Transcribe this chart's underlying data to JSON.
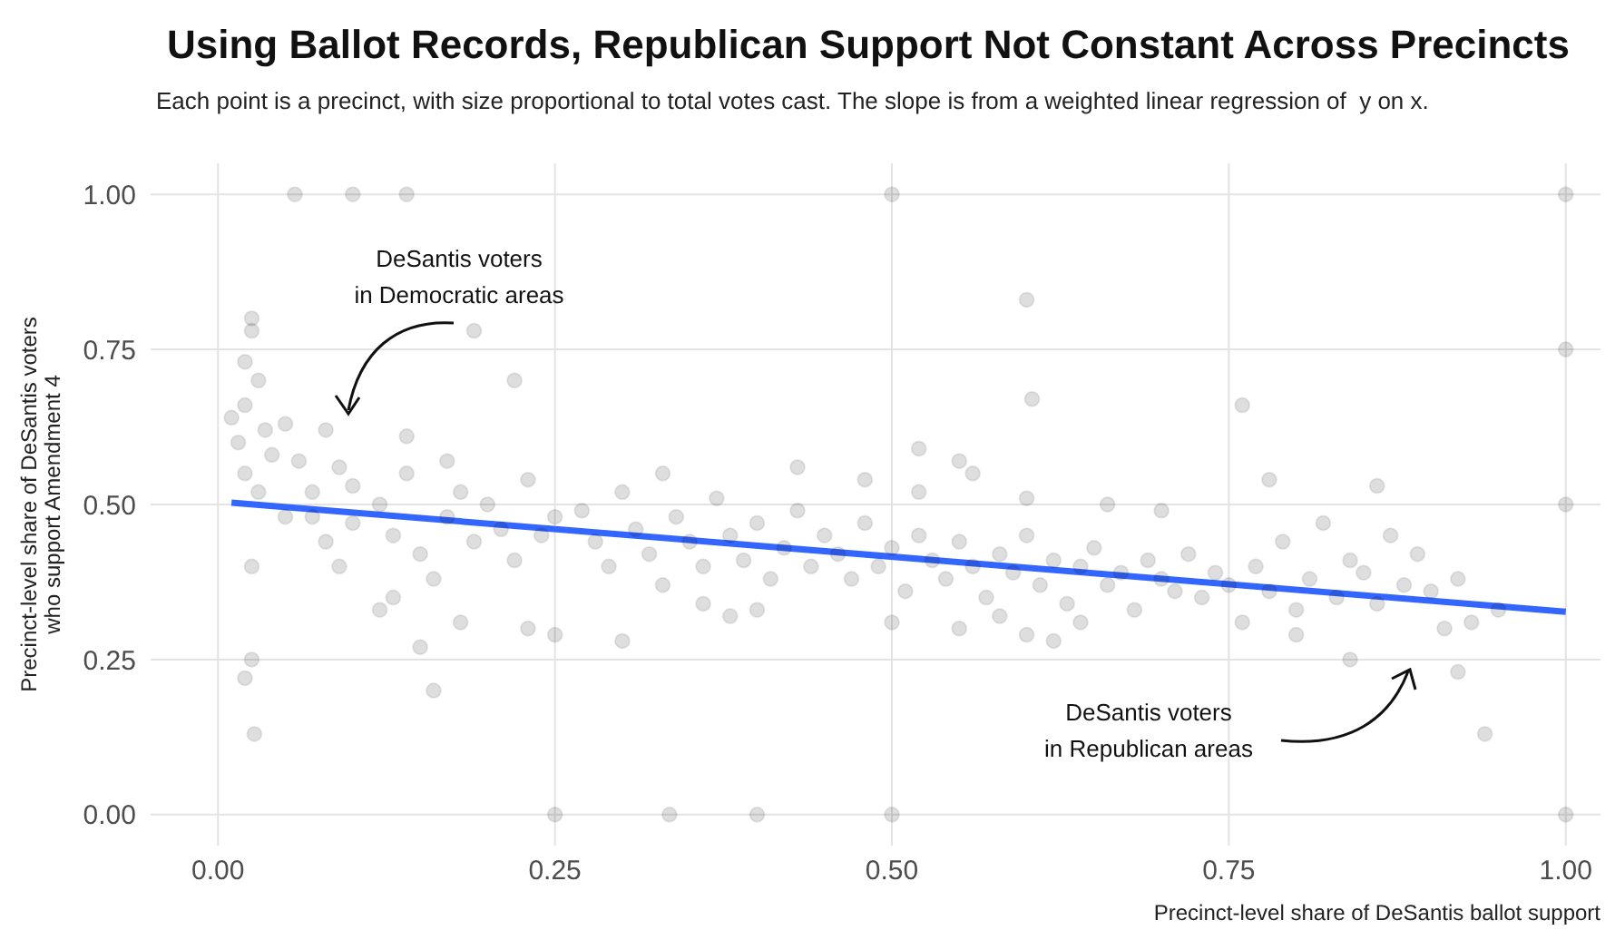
{
  "chart_data": {
    "type": "scatter",
    "title": "Using Ballot Records, Republican Support Not Constant Across Precincts",
    "subtitle": "Each point is a precinct, with size proportional to total votes cast. The slope is from a weighted linear regression of  y on x.",
    "xlabel": "Precinct-level share of DeSantis ballot support",
    "ylabel": "Precinct-level share of DeSantis voters\nwho support Amendment 4",
    "annotations": [
      "DeSantis voters\nin Democratic areas",
      "DeSantis voters\nin Republican areas"
    ],
    "xlim": [
      -0.05,
      1.05
    ],
    "ylim": [
      -0.05,
      1.05
    ],
    "xticks": [
      {
        "value": 0,
        "label": "0.00"
      },
      {
        "value": 0.25,
        "label": "0.25"
      },
      {
        "value": 0.5,
        "label": "0.50"
      },
      {
        "value": 0.75,
        "label": "0.75"
      },
      {
        "value": 1,
        "label": "1.00"
      }
    ],
    "yticks": [
      {
        "value": 0,
        "label": "0.00"
      },
      {
        "value": 0.25,
        "label": "0.25"
      },
      {
        "value": 0.5,
        "label": "0.50"
      },
      {
        "value": 0.75,
        "label": "0.75"
      },
      {
        "value": 1,
        "label": "1.00"
      }
    ],
    "grid": true,
    "legend": false,
    "series": [
      {
        "type": "scatter",
        "color": "#000000",
        "marker": "circle",
        "x": [
          0.01,
          0.015,
          0.02,
          0.02,
          0.025,
          0.025,
          0.03,
          0.035,
          0.02,
          0.03,
          0.04,
          0.05,
          0.06,
          0.07,
          0.08,
          0.09,
          0.1,
          0.025,
          0.02,
          0.025,
          0.027,
          0.05,
          0.07,
          0.08,
          0.09,
          0.1,
          0.12,
          0.13,
          0.14,
          0.15,
          0.16,
          0.17,
          0.18,
          0.19,
          0.2,
          0.21,
          0.22,
          0.23,
          0.24,
          0.25,
          0.13,
          0.15,
          0.16,
          0.18,
          0.23,
          0.25,
          0.12,
          0.14,
          0.19,
          0.22,
          0.17,
          0.27,
          0.28,
          0.29,
          0.3,
          0.31,
          0.32,
          0.33,
          0.34,
          0.35,
          0.36,
          0.37,
          0.38,
          0.39,
          0.4,
          0.41,
          0.42,
          0.43,
          0.44,
          0.45,
          0.3,
          0.33,
          0.36,
          0.4,
          0.43,
          0.38,
          0.46,
          0.47,
          0.48,
          0.49,
          0.5,
          0.51,
          0.52,
          0.53,
          0.54,
          0.55,
          0.56,
          0.57,
          0.58,
          0.59,
          0.6,
          0.61,
          0.62,
          0.63,
          0.64,
          0.65,
          0.66,
          0.67,
          0.68,
          0.69,
          0.7,
          0.71,
          0.72,
          0.73,
          0.74,
          0.75,
          0.48,
          0.52,
          0.56,
          0.6,
          0.5,
          0.55,
          0.6,
          0.62,
          0.66,
          0.7,
          0.58,
          0.64,
          0.77,
          0.78,
          0.79,
          0.8,
          0.81,
          0.82,
          0.83,
          0.84,
          0.85,
          0.86,
          0.87,
          0.88,
          0.89,
          0.9,
          0.91,
          0.92,
          0.93,
          0.76,
          0.8,
          0.84,
          0.86,
          0.78,
          0.92,
          0.95,
          0.057,
          0.1,
          0.14,
          0.5,
          1.0,
          1.0,
          1.0,
          1.0,
          0.5,
          0.25,
          0.335,
          0.4,
          0.6,
          0.604,
          0.76,
          0.94,
          0.52,
          0.55
        ],
        "values": [
          0.64,
          0.6,
          0.66,
          0.73,
          0.8,
          0.78,
          0.7,
          0.62,
          0.55,
          0.52,
          0.58,
          0.63,
          0.57,
          0.52,
          0.62,
          0.56,
          0.53,
          0.4,
          0.22,
          0.25,
          0.13,
          0.48,
          0.48,
          0.44,
          0.4,
          0.47,
          0.5,
          0.45,
          0.55,
          0.42,
          0.38,
          0.48,
          0.52,
          0.44,
          0.5,
          0.46,
          0.41,
          0.54,
          0.45,
          0.48,
          0.35,
          0.27,
          0.2,
          0.31,
          0.3,
          0.29,
          0.33,
          0.61,
          0.78,
          0.7,
          0.57,
          0.49,
          0.44,
          0.4,
          0.52,
          0.46,
          0.42,
          0.37,
          0.48,
          0.44,
          0.4,
          0.51,
          0.45,
          0.41,
          0.47,
          0.38,
          0.43,
          0.49,
          0.4,
          0.45,
          0.28,
          0.55,
          0.34,
          0.33,
          0.56,
          0.32,
          0.42,
          0.38,
          0.47,
          0.4,
          0.43,
          0.36,
          0.45,
          0.41,
          0.38,
          0.44,
          0.4,
          0.35,
          0.42,
          0.39,
          0.45,
          0.37,
          0.41,
          0.34,
          0.4,
          0.43,
          0.37,
          0.39,
          0.33,
          0.41,
          0.38,
          0.36,
          0.42,
          0.35,
          0.39,
          0.37,
          0.54,
          0.52,
          0.55,
          0.51,
          0.31,
          0.3,
          0.29,
          0.28,
          0.5,
          0.49,
          0.32,
          0.31,
          0.4,
          0.36,
          0.44,
          0.33,
          0.38,
          0.47,
          0.35,
          0.41,
          0.39,
          0.34,
          0.45,
          0.37,
          0.42,
          0.36,
          0.3,
          0.38,
          0.31,
          0.31,
          0.29,
          0.25,
          0.53,
          0.54,
          0.23,
          0.33,
          1.0,
          1.0,
          1.0,
          1.0,
          1.0,
          0.75,
          0.5,
          0.0,
          0.0,
          0.0,
          0.0,
          0.0,
          0.83,
          0.67,
          0.66,
          0.13,
          0.59,
          0.57
        ]
      },
      {
        "type": "line",
        "color": "#3366ff",
        "marker": "none",
        "line_style": "solid",
        "x": [
          0.01,
          1.0
        ],
        "values": [
          0.503,
          0.327
        ]
      }
    ]
  }
}
